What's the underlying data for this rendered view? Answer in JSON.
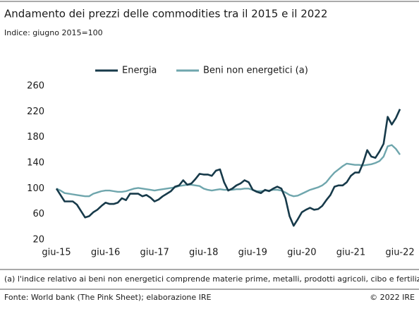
{
  "chart_data": {
    "type": "line",
    "title": "Andamento dei prezzi delle commodities tra il 2015 e il 2022",
    "subtitle": "Indice: giugno 2015=100",
    "note": "(a) l'indice relativo ai beni non energetici comprende materie prime, metalli, prodotti agricoli, cibo e fertilizzanti",
    "source": "Fonte: World bank (The Pink Sheet); elaborazione IRE",
    "copyright": "© 2022 IRE",
    "categories": [
      "giu-15",
      null,
      null,
      null,
      null,
      null,
      null,
      null,
      null,
      null,
      null,
      null,
      "giu-16",
      null,
      null,
      null,
      null,
      null,
      null,
      null,
      null,
      null,
      null,
      null,
      "giu-17",
      null,
      null,
      null,
      null,
      null,
      null,
      null,
      null,
      null,
      null,
      null,
      "giu-18",
      null,
      null,
      null,
      null,
      null,
      null,
      null,
      null,
      null,
      null,
      null,
      "giu-19",
      null,
      null,
      null,
      null,
      null,
      null,
      null,
      null,
      null,
      null,
      null,
      "giu-20",
      null,
      null,
      null,
      null,
      null,
      null,
      null,
      null,
      null,
      null,
      null,
      "giu-21",
      null,
      null,
      null,
      null,
      null,
      null,
      null,
      null,
      null,
      null,
      null,
      "giu-22"
    ],
    "series": [
      {
        "name": "Energia",
        "color": "#173a4a",
        "values": [
          100,
          90,
          80,
          80,
          80,
          75,
          65,
          55,
          57,
          63,
          67,
          73,
          78,
          76,
          76,
          78,
          85,
          82,
          92,
          92,
          92,
          88,
          90,
          86,
          80,
          83,
          88,
          92,
          96,
          103,
          105,
          113,
          106,
          108,
          115,
          123,
          122,
          122,
          120,
          128,
          130,
          110,
          97,
          100,
          105,
          108,
          113,
          110,
          98,
          95,
          93,
          98,
          96,
          100,
          103,
          100,
          85,
          57,
          42,
          52,
          63,
          67,
          70,
          67,
          68,
          73,
          82,
          90,
          103,
          105,
          105,
          110,
          120,
          125,
          125,
          140,
          160,
          150,
          148,
          158,
          170,
          212,
          200,
          210,
          224
        ]
      },
      {
        "name": "Beni non energetici (a)",
        "color": "#6fa6ad",
        "values": [
          100,
          97,
          93,
          92,
          91,
          90,
          89,
          88,
          88,
          92,
          94,
          96,
          97,
          97,
          96,
          95,
          95,
          96,
          98,
          100,
          101,
          100,
          99,
          98,
          97,
          98,
          99,
          100,
          101,
          102,
          104,
          105,
          106,
          106,
          105,
          104,
          100,
          98,
          97,
          98,
          99,
          98,
          98,
          98,
          99,
          99,
          100,
          100,
          98,
          96,
          96,
          97,
          97,
          98,
          98,
          97,
          94,
          90,
          88,
          89,
          92,
          95,
          98,
          100,
          102,
          105,
          110,
          118,
          125,
          130,
          135,
          139,
          138,
          137,
          137,
          136,
          137,
          138,
          140,
          143,
          150,
          166,
          168,
          162,
          153
        ]
      }
    ],
    "ylim": [
      20,
      260
    ],
    "yticks": [
      20,
      60,
      100,
      140,
      180,
      220,
      260
    ],
    "grid": false
  }
}
